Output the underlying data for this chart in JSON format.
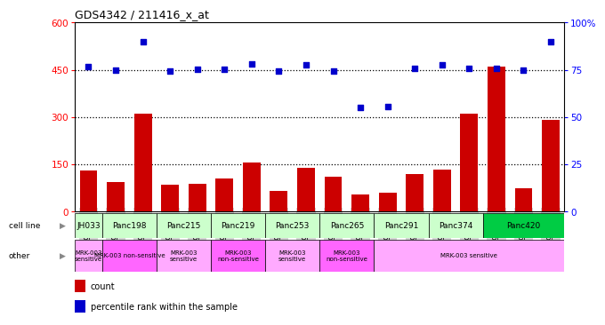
{
  "title": "GDS4342 / 211416_x_at",
  "samples": [
    "GSM924986",
    "GSM924992",
    "GSM924987",
    "GSM924995",
    "GSM924985",
    "GSM924991",
    "GSM924989",
    "GSM924990",
    "GSM924979",
    "GSM924982",
    "GSM924978",
    "GSM924994",
    "GSM924980",
    "GSM924983",
    "GSM924981",
    "GSM924984",
    "GSM924988",
    "GSM924993"
  ],
  "counts": [
    130,
    95,
    310,
    85,
    90,
    105,
    155,
    65,
    140,
    110,
    55,
    60,
    120,
    135,
    310,
    460,
    75,
    290
  ],
  "percentiles": [
    460,
    450,
    540,
    445,
    452,
    452,
    470,
    447,
    465,
    447,
    330,
    335,
    455,
    465,
    455,
    455,
    448,
    540
  ],
  "cell_lines": [
    {
      "name": "JH033",
      "start": 0,
      "end": 1,
      "color": "#ccffcc"
    },
    {
      "name": "Panc198",
      "start": 1,
      "end": 3,
      "color": "#ccffcc"
    },
    {
      "name": "Panc215",
      "start": 3,
      "end": 5,
      "color": "#ccffcc"
    },
    {
      "name": "Panc219",
      "start": 5,
      "end": 7,
      "color": "#ccffcc"
    },
    {
      "name": "Panc253",
      "start": 7,
      "end": 9,
      "color": "#ccffcc"
    },
    {
      "name": "Panc265",
      "start": 9,
      "end": 11,
      "color": "#ccffcc"
    },
    {
      "name": "Panc291",
      "start": 11,
      "end": 13,
      "color": "#ccffcc"
    },
    {
      "name": "Panc374",
      "start": 13,
      "end": 15,
      "color": "#ccffcc"
    },
    {
      "name": "Panc420",
      "start": 15,
      "end": 18,
      "color": "#00cc44"
    }
  ],
  "other_labels": [
    {
      "text": "MRK-003\nsensitive",
      "start": 0,
      "end": 1,
      "color": "#ffaaff"
    },
    {
      "text": "MRK-003 non-sensitive",
      "start": 1,
      "end": 3,
      "color": "#ff66ff"
    },
    {
      "text": "MRK-003\nsensitive",
      "start": 3,
      "end": 5,
      "color": "#ffaaff"
    },
    {
      "text": "MRK-003\nnon-sensitive",
      "start": 5,
      "end": 7,
      "color": "#ff66ff"
    },
    {
      "text": "MRK-003\nsensitive",
      "start": 7,
      "end": 9,
      "color": "#ffaaff"
    },
    {
      "text": "MRK-003\nnon-sensitive",
      "start": 9,
      "end": 11,
      "color": "#ff66ff"
    },
    {
      "text": "MRK-003 sensitive",
      "start": 11,
      "end": 18,
      "color": "#ffaaff"
    }
  ],
  "bar_color": "#cc0000",
  "dot_color": "#0000cc",
  "ylim": [
    0,
    600
  ],
  "yticks_left": [
    0,
    150,
    300,
    450,
    600
  ],
  "yticks_right": [
    0,
    25,
    50,
    75,
    100
  ],
  "dotted_lines": [
    150,
    300,
    450
  ],
  "bg_color": "#ffffff",
  "tick_bg": "#d3d3d3"
}
